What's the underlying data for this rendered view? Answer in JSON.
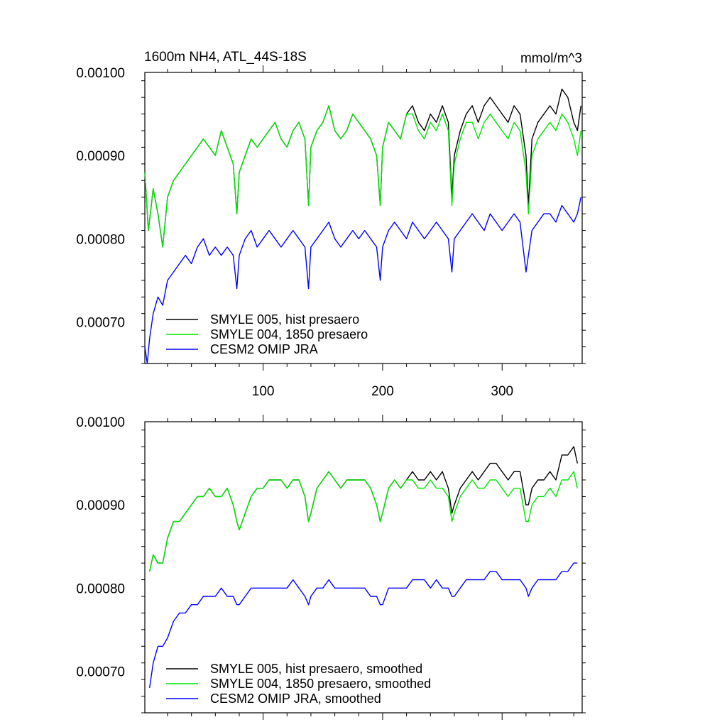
{
  "colors": {
    "black": "#000000",
    "green": "#00e600",
    "blue": "#0000ff"
  },
  "chart_data": [
    {
      "type": "line",
      "title": "1600m NH4, ATL_44S-18S",
      "units": "mmol/m^3",
      "xlabel": "",
      "ylabel": "",
      "xlim": [
        1,
        367
      ],
      "ylim": [
        0.00065,
        0.001
      ],
      "xticks": [
        "100",
        "200",
        "300"
      ],
      "yticks": [
        "0.00070",
        "0.00080",
        "0.00090",
        "0.00100"
      ],
      "legend_position": "bottom-left",
      "series": [
        {
          "name": "SMYLE 005, hist presaero",
          "color": "#000000",
          "x": [
            1,
            4,
            8,
            12,
            16,
            20,
            25,
            30,
            35,
            40,
            45,
            50,
            55,
            60,
            65,
            70,
            75,
            78,
            80,
            85,
            90,
            95,
            100,
            105,
            110,
            115,
            120,
            125,
            130,
            135,
            138,
            140,
            145,
            150,
            155,
            160,
            165,
            170,
            175,
            180,
            185,
            190,
            195,
            198,
            200,
            205,
            210,
            215,
            220,
            225,
            230,
            235,
            240,
            245,
            250,
            255,
            258,
            260,
            265,
            270,
            275,
            280,
            285,
            290,
            295,
            300,
            305,
            310,
            315,
            320,
            322,
            325,
            330,
            335,
            340,
            345,
            350,
            355,
            360,
            363,
            366
          ],
          "y": [
            0.00088,
            0.00081,
            0.00086,
            0.00083,
            0.00079,
            0.00085,
            0.00087,
            0.00088,
            0.00089,
            0.0009,
            0.00091,
            0.00092,
            0.00091,
            0.0009,
            0.00093,
            0.00091,
            0.00089,
            0.00083,
            0.00088,
            0.0009,
            0.00092,
            0.00091,
            0.00092,
            0.00093,
            0.00094,
            0.00092,
            0.00091,
            0.00093,
            0.00094,
            0.00092,
            0.00084,
            0.00091,
            0.00093,
            0.00094,
            0.00096,
            0.00093,
            0.00092,
            0.00093,
            0.00095,
            0.00094,
            0.00093,
            0.00092,
            0.0009,
            0.00084,
            0.00091,
            0.00094,
            0.00093,
            0.00092,
            0.00095,
            0.00096,
            0.00094,
            0.00093,
            0.00095,
            0.00094,
            0.00096,
            0.00094,
            0.00085,
            0.0009,
            0.00093,
            0.00095,
            0.00096,
            0.00094,
            0.00096,
            0.00097,
            0.00096,
            0.00095,
            0.00094,
            0.00096,
            0.00095,
            0.0009,
            0.00084,
            0.00092,
            0.00094,
            0.00095,
            0.00096,
            0.00095,
            0.00098,
            0.00097,
            0.00094,
            0.00093,
            0.00096
          ]
        },
        {
          "name": "SMYLE 004, 1850 presaero",
          "color": "#00e600",
          "x": [
            1,
            4,
            8,
            12,
            16,
            20,
            25,
            30,
            35,
            40,
            45,
            50,
            55,
            60,
            65,
            70,
            75,
            78,
            80,
            85,
            90,
            95,
            100,
            105,
            110,
            115,
            120,
            125,
            130,
            135,
            138,
            140,
            145,
            150,
            155,
            160,
            165,
            170,
            175,
            180,
            185,
            190,
            195,
            198,
            200,
            205,
            210,
            215,
            220,
            225,
            230,
            235,
            240,
            245,
            250,
            255,
            258,
            260,
            265,
            270,
            275,
            280,
            285,
            290,
            295,
            300,
            305,
            310,
            315,
            320,
            322,
            325,
            330,
            335,
            340,
            345,
            350,
            355,
            360,
            363,
            366
          ],
          "y": [
            0.00088,
            0.00081,
            0.00086,
            0.00083,
            0.00079,
            0.00085,
            0.00087,
            0.00088,
            0.00089,
            0.0009,
            0.00091,
            0.00092,
            0.00091,
            0.0009,
            0.00093,
            0.00091,
            0.00089,
            0.00083,
            0.00088,
            0.0009,
            0.00092,
            0.00091,
            0.00092,
            0.00093,
            0.00094,
            0.00092,
            0.00091,
            0.00093,
            0.00094,
            0.00092,
            0.00084,
            0.00091,
            0.00093,
            0.00094,
            0.00096,
            0.00093,
            0.00092,
            0.00093,
            0.00095,
            0.00094,
            0.00093,
            0.00092,
            0.0009,
            0.00084,
            0.00091,
            0.00094,
            0.00093,
            0.00092,
            0.00095,
            0.00095,
            0.00093,
            0.00092,
            0.00094,
            0.00093,
            0.00095,
            0.00093,
            0.00084,
            0.00089,
            0.00092,
            0.00094,
            0.00094,
            0.00092,
            0.00094,
            0.00095,
            0.00094,
            0.00093,
            0.00092,
            0.00094,
            0.00093,
            0.00088,
            0.00083,
            0.0009,
            0.00092,
            0.00093,
            0.00094,
            0.00093,
            0.00095,
            0.00094,
            0.00092,
            0.0009,
            0.00093
          ]
        },
        {
          "name": "CESM2 OMIP JRA",
          "color": "#0000ff",
          "x": [
            1,
            3,
            5,
            8,
            12,
            16,
            20,
            25,
            30,
            35,
            40,
            45,
            50,
            55,
            60,
            65,
            70,
            75,
            78,
            80,
            85,
            90,
            95,
            100,
            105,
            110,
            115,
            120,
            125,
            130,
            135,
            138,
            140,
            145,
            150,
            155,
            160,
            165,
            170,
            175,
            180,
            185,
            190,
            195,
            198,
            200,
            205,
            210,
            215,
            220,
            225,
            230,
            235,
            240,
            245,
            250,
            255,
            258,
            260,
            265,
            270,
            275,
            280,
            285,
            290,
            295,
            300,
            305,
            310,
            315,
            320,
            325,
            330,
            335,
            340,
            345,
            350,
            355,
            360,
            363,
            366
          ],
          "y": [
            0.00067,
            0.00065,
            0.00068,
            0.00071,
            0.00073,
            0.00072,
            0.00075,
            0.00076,
            0.00077,
            0.00078,
            0.00077,
            0.00079,
            0.0008,
            0.00078,
            0.00079,
            0.00078,
            0.00079,
            0.00078,
            0.00074,
            0.00078,
            0.0008,
            0.00081,
            0.00079,
            0.0008,
            0.00081,
            0.0008,
            0.00079,
            0.0008,
            0.00081,
            0.0008,
            0.00079,
            0.00074,
            0.00079,
            0.0008,
            0.00081,
            0.00082,
            0.0008,
            0.00079,
            0.0008,
            0.00081,
            0.0008,
            0.00081,
            0.0008,
            0.00079,
            0.00075,
            0.00079,
            0.00081,
            0.00082,
            0.00081,
            0.0008,
            0.00082,
            0.00081,
            0.0008,
            0.00081,
            0.00082,
            0.00081,
            0.0008,
            0.00076,
            0.0008,
            0.00081,
            0.00082,
            0.00083,
            0.00082,
            0.00081,
            0.00083,
            0.00082,
            0.00081,
            0.00082,
            0.00083,
            0.00082,
            0.00076,
            0.00081,
            0.00082,
            0.00083,
            0.00083,
            0.00082,
            0.00084,
            0.00083,
            0.00082,
            0.00083,
            0.00085
          ]
        }
      ]
    },
    {
      "type": "line",
      "title": "",
      "xlabel": "",
      "ylabel": "",
      "xlim": [
        1,
        367
      ],
      "ylim": [
        0.00065,
        0.001
      ],
      "xticks": [],
      "yticks": [
        "0.00070",
        "0.00080",
        "0.00090",
        "0.00100"
      ],
      "legend_position": "bottom-left",
      "series": [
        {
          "name": "SMYLE 005, hist presaero, smoothed",
          "color": "#000000",
          "x": [
            5,
            8,
            12,
            16,
            20,
            25,
            30,
            35,
            40,
            45,
            50,
            55,
            60,
            65,
            70,
            75,
            78,
            80,
            85,
            90,
            95,
            100,
            105,
            110,
            115,
            120,
            125,
            130,
            135,
            138,
            140,
            145,
            150,
            155,
            160,
            165,
            170,
            175,
            180,
            185,
            190,
            195,
            198,
            200,
            205,
            210,
            215,
            220,
            225,
            230,
            235,
            240,
            245,
            250,
            255,
            258,
            260,
            265,
            270,
            275,
            280,
            285,
            290,
            295,
            300,
            305,
            310,
            315,
            320,
            322,
            325,
            330,
            335,
            340,
            345,
            350,
            355,
            360,
            363
          ],
          "y": [
            0.00082,
            0.00084,
            0.00083,
            0.00083,
            0.00086,
            0.00088,
            0.00088,
            0.00089,
            0.0009,
            0.00091,
            0.00091,
            0.00092,
            0.00091,
            0.00091,
            0.00092,
            0.0009,
            0.00088,
            0.00087,
            0.00089,
            0.00091,
            0.00092,
            0.00092,
            0.00093,
            0.00093,
            0.00093,
            0.00092,
            0.00093,
            0.00093,
            0.00091,
            0.00088,
            0.00089,
            0.00092,
            0.00093,
            0.00094,
            0.00093,
            0.00092,
            0.00093,
            0.00093,
            0.00093,
            0.00093,
            0.00092,
            0.0009,
            0.00088,
            0.00089,
            0.00092,
            0.00093,
            0.00092,
            0.00093,
            0.00094,
            0.00093,
            0.00093,
            0.00094,
            0.00093,
            0.00094,
            0.00092,
            0.00089,
            0.0009,
            0.00092,
            0.00093,
            0.00094,
            0.00093,
            0.00094,
            0.00095,
            0.00095,
            0.00094,
            0.00093,
            0.00094,
            0.00094,
            0.0009,
            0.0009,
            0.00092,
            0.00093,
            0.00093,
            0.00094,
            0.00093,
            0.00096,
            0.00096,
            0.00097,
            0.00095
          ]
        },
        {
          "name": "SMYLE 004, 1850 presaero, smoothed",
          "color": "#00e600",
          "x": [
            5,
            8,
            12,
            16,
            20,
            25,
            30,
            35,
            40,
            45,
            50,
            55,
            60,
            65,
            70,
            75,
            78,
            80,
            85,
            90,
            95,
            100,
            105,
            110,
            115,
            120,
            125,
            130,
            135,
            138,
            140,
            145,
            150,
            155,
            160,
            165,
            170,
            175,
            180,
            185,
            190,
            195,
            198,
            200,
            205,
            210,
            215,
            220,
            225,
            230,
            235,
            240,
            245,
            250,
            255,
            258,
            260,
            265,
            270,
            275,
            280,
            285,
            290,
            295,
            300,
            305,
            310,
            315,
            320,
            322,
            325,
            330,
            335,
            340,
            345,
            350,
            355,
            360,
            363
          ],
          "y": [
            0.00082,
            0.00084,
            0.00083,
            0.00083,
            0.00086,
            0.00088,
            0.00088,
            0.00089,
            0.0009,
            0.00091,
            0.00091,
            0.00092,
            0.00091,
            0.00091,
            0.00092,
            0.0009,
            0.00088,
            0.00087,
            0.00089,
            0.00091,
            0.00092,
            0.00092,
            0.00093,
            0.00093,
            0.00093,
            0.00092,
            0.00093,
            0.00093,
            0.00091,
            0.00088,
            0.00089,
            0.00092,
            0.00093,
            0.00094,
            0.00093,
            0.00092,
            0.00093,
            0.00093,
            0.00093,
            0.00093,
            0.00092,
            0.0009,
            0.00088,
            0.00089,
            0.00092,
            0.00093,
            0.00092,
            0.00093,
            0.00093,
            0.00092,
            0.00092,
            0.00093,
            0.00092,
            0.00092,
            0.00091,
            0.00088,
            0.00089,
            0.00091,
            0.00092,
            0.00093,
            0.00092,
            0.00092,
            0.00093,
            0.00093,
            0.00092,
            0.00091,
            0.00092,
            0.00092,
            0.00088,
            0.00088,
            0.0009,
            0.00091,
            0.00091,
            0.00092,
            0.00091,
            0.00093,
            0.00093,
            0.00094,
            0.00092
          ]
        },
        {
          "name": "CESM2 OMIP JRA, smoothed",
          "color": "#0000ff",
          "x": [
            5,
            8,
            12,
            16,
            20,
            25,
            30,
            35,
            40,
            45,
            50,
            55,
            60,
            65,
            70,
            75,
            78,
            80,
            85,
            90,
            95,
            100,
            105,
            110,
            115,
            120,
            125,
            130,
            135,
            138,
            140,
            145,
            150,
            155,
            160,
            165,
            170,
            175,
            180,
            185,
            190,
            195,
            198,
            200,
            205,
            210,
            215,
            220,
            225,
            230,
            235,
            240,
            245,
            250,
            255,
            258,
            260,
            265,
            270,
            275,
            280,
            285,
            290,
            295,
            300,
            305,
            310,
            315,
            320,
            322,
            325,
            330,
            335,
            340,
            345,
            350,
            355,
            360,
            363
          ],
          "y": [
            0.00068,
            0.00071,
            0.00073,
            0.00073,
            0.00074,
            0.00076,
            0.00077,
            0.00077,
            0.00078,
            0.00078,
            0.00079,
            0.00079,
            0.00079,
            0.0008,
            0.00079,
            0.00079,
            0.00078,
            0.00078,
            0.00079,
            0.0008,
            0.0008,
            0.0008,
            0.0008,
            0.0008,
            0.0008,
            0.0008,
            0.00081,
            0.0008,
            0.00079,
            0.00078,
            0.00079,
            0.0008,
            0.0008,
            0.00081,
            0.0008,
            0.0008,
            0.0008,
            0.0008,
            0.0008,
            0.0008,
            0.00079,
            0.00079,
            0.00078,
            0.00078,
            0.0008,
            0.0008,
            0.0008,
            0.0008,
            0.00081,
            0.00081,
            0.00081,
            0.0008,
            0.00081,
            0.0008,
            0.0008,
            0.00079,
            0.00079,
            0.0008,
            0.00081,
            0.00081,
            0.00081,
            0.00081,
            0.00082,
            0.00082,
            0.00081,
            0.00081,
            0.00081,
            0.00081,
            0.0008,
            0.00079,
            0.0008,
            0.00081,
            0.00081,
            0.00081,
            0.00081,
            0.00082,
            0.00082,
            0.00083,
            0.00083
          ]
        }
      ]
    }
  ]
}
